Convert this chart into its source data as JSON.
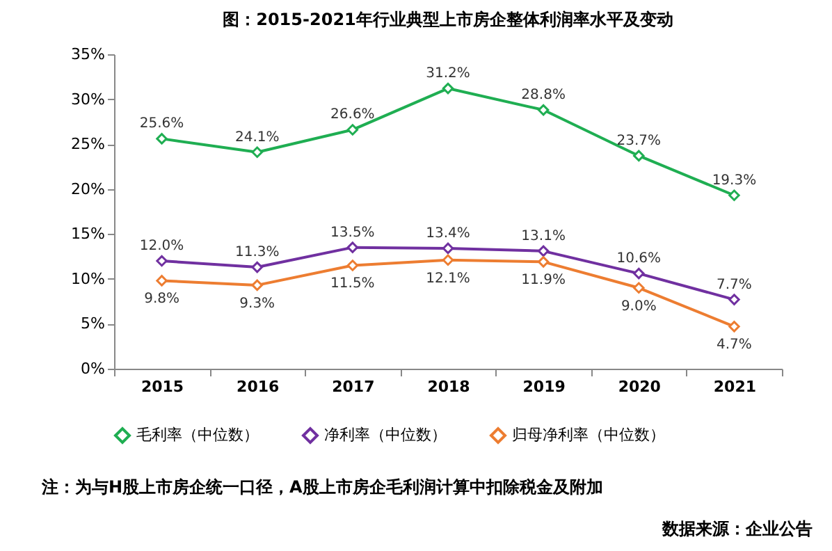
{
  "chart_data": {
    "type": "line",
    "title": "图：2015-2021年行业典型上市房企整体利润率水平及变动",
    "categories": [
      "2015",
      "2016",
      "2017",
      "2018",
      "2019",
      "2020",
      "2021"
    ],
    "series": [
      {
        "name": "毛利率（中位数）",
        "color": "#1fae52",
        "values": [
          25.6,
          24.1,
          26.6,
          31.2,
          28.8,
          23.7,
          19.3
        ],
        "value_labels": [
          "25.6%",
          "24.1%",
          "26.6%",
          "31.2%",
          "28.8%",
          "23.7%",
          "19.3%"
        ]
      },
      {
        "name": "净利率（中位数）",
        "color": "#7030a0",
        "values": [
          12.0,
          11.3,
          13.5,
          13.4,
          13.1,
          10.6,
          7.7
        ],
        "value_labels": [
          "12.0%",
          "11.3%",
          "13.5%",
          "13.4%",
          "13.1%",
          "10.6%",
          "7.7%"
        ]
      },
      {
        "name": "归母净利率（中位数）",
        "color": "#ed7d31",
        "values": [
          9.8,
          9.3,
          11.5,
          12.1,
          11.9,
          9.0,
          4.7
        ],
        "value_labels": [
          "9.8%",
          "9.3%",
          "11.5%",
          "12.1%",
          "11.9%",
          "9.0%",
          "4.7%"
        ]
      }
    ],
    "ylim": [
      0,
      35
    ],
    "yticks": [
      {
        "value": 0,
        "label": "0%"
      },
      {
        "value": 5,
        "label": "5%"
      },
      {
        "value": 10,
        "label": "10%"
      },
      {
        "value": 15,
        "label": "15%"
      },
      {
        "value": 20,
        "label": "20%"
      },
      {
        "value": 25,
        "label": "25%"
      },
      {
        "value": 30,
        "label": "30%"
      },
      {
        "value": 35,
        "label": "35%"
      }
    ],
    "grid": false,
    "legend": "bottom",
    "marker": "diamond",
    "line_style": "solid",
    "annotations": [
      "注：为与H股上市房企统一口径，A股上市房企毛利润计算中扣除税金及附加",
      "数据来源：企业公告"
    ]
  }
}
